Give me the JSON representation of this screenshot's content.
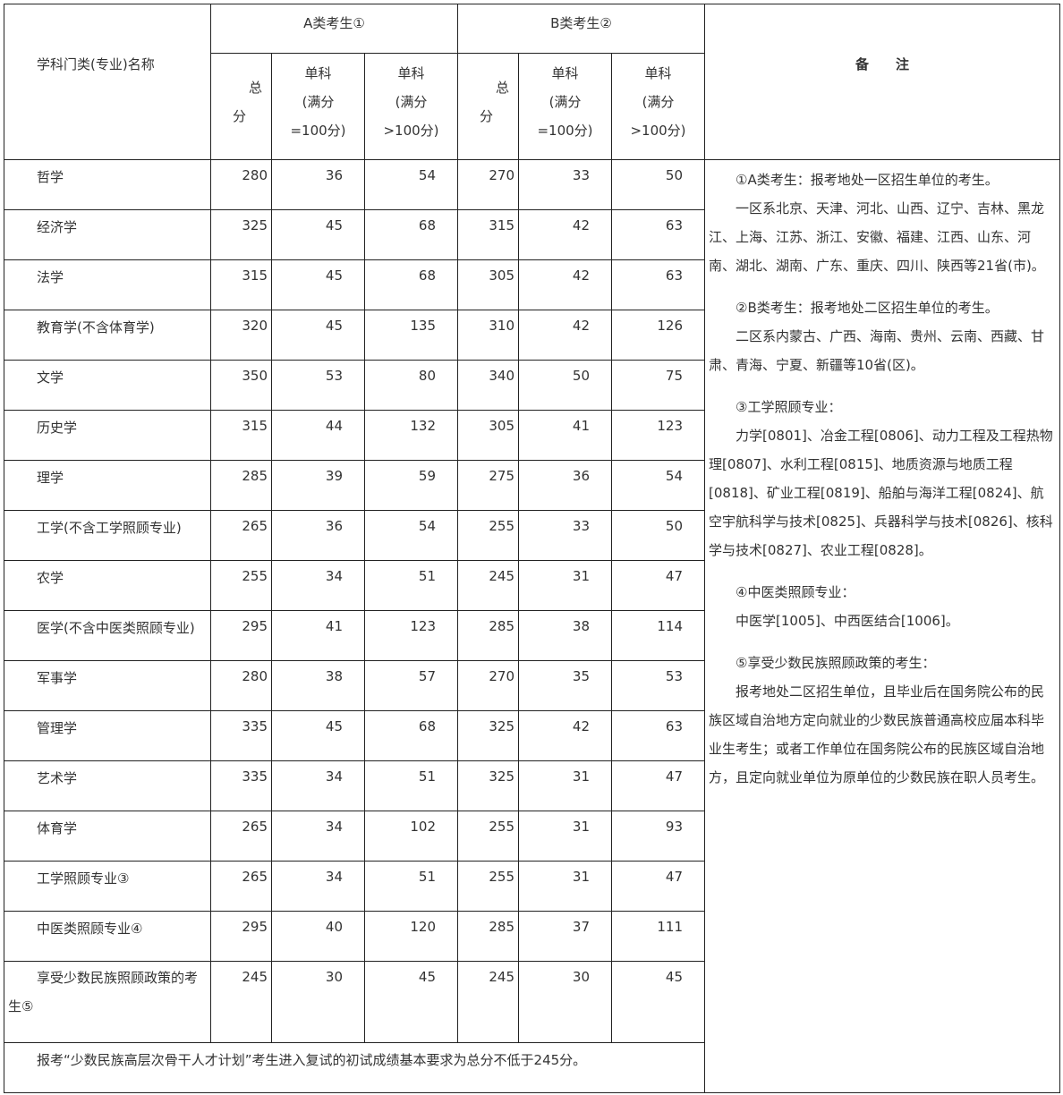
{
  "header": {
    "name_col": "学科门类(专业)名称",
    "group_a": "A类考生①",
    "group_b": "B类考生②",
    "remarks": "备　　注",
    "total_1": "总",
    "total_2": "分",
    "single_1": "单科",
    "single_eq_2": "(满分",
    "single_eq_3": "=100分)",
    "single_gt_3": ">100分)"
  },
  "rows": [
    [
      "哲学",
      "280",
      "36",
      "54",
      "270",
      "33",
      "50"
    ],
    [
      "经济学",
      "325",
      "45",
      "68",
      "315",
      "42",
      "63"
    ],
    [
      "法学",
      "315",
      "45",
      "68",
      "305",
      "42",
      "63"
    ],
    [
      "教育学(不含体育学)",
      "320",
      "45",
      "135",
      "310",
      "42",
      "126"
    ],
    [
      "文学",
      "350",
      "53",
      "80",
      "340",
      "50",
      "75"
    ],
    [
      "历史学",
      "315",
      "44",
      "132",
      "305",
      "41",
      "123"
    ],
    [
      "理学",
      "285",
      "39",
      "59",
      "275",
      "36",
      "54"
    ],
    [
      "工学(不含工学照顾专业)",
      "265",
      "36",
      "54",
      "255",
      "33",
      "50"
    ],
    [
      "农学",
      "255",
      "34",
      "51",
      "245",
      "31",
      "47"
    ],
    [
      "医学(不含中医类照顾专业)",
      "295",
      "41",
      "123",
      "285",
      "38",
      "114"
    ],
    [
      "军事学",
      "280",
      "38",
      "57",
      "270",
      "35",
      "53"
    ],
    [
      "管理学",
      "335",
      "45",
      "68",
      "325",
      "42",
      "63"
    ],
    [
      "艺术学",
      "335",
      "34",
      "51",
      "325",
      "31",
      "47"
    ],
    [
      "体育学",
      "265",
      "34",
      "102",
      "255",
      "31",
      "93"
    ],
    [
      "工学照顾专业③",
      "265",
      "34",
      "51",
      "255",
      "31",
      "47"
    ],
    [
      "中医类照顾专业④",
      "295",
      "40",
      "120",
      "285",
      "37",
      "111"
    ],
    [
      "享受少数民族照顾政策的考生⑤",
      "245",
      "30",
      "45",
      "245",
      "30",
      "45"
    ]
  ],
  "notes": [
    "①A类考生：报考地处一区招生单位的考生。",
    "一区系北京、天津、河北、山西、辽宁、吉林、黑龙江、上海、江苏、浙江、安徽、福建、江西、山东、河南、湖北、湖南、广东、重庆、四川、陕西等21省(市)。",
    "②B类考生：报考地处二区招生单位的考生。",
    "二区系内蒙古、广西、海南、贵州、云南、西藏、甘肃、青海、宁夏、新疆等10省(区)。",
    "③工学照顾专业：",
    "力学[0801]、冶金工程[0806]、动力工程及工程热物理[0807]、水利工程[0815]、地质资源与地质工程[0818]、矿业工程[0819]、船舶与海洋工程[0824]、航空宇航科学与技术[0825]、兵器科学与技术[0826]、核科学与技术[0827]、农业工程[0828]。",
    "④中医类照顾专业：",
    "中医学[1005]、中西医结合[1006]。",
    "⑤享受少数民族照顾政策的考生：",
    "报考地处二区招生单位，且毕业后在国务院公布的民族区域自治地方定向就业的少数民族普通高校应届本科毕业生考生；或者工作单位在国务院公布的民族区域自治地方，且定向就业单位为原单位的少数民族在职人员考生。"
  ],
  "footer": "报考“少数民族高层次骨干人才计划”考生进入复试的初试成绩基本要求为总分不低于245分。"
}
